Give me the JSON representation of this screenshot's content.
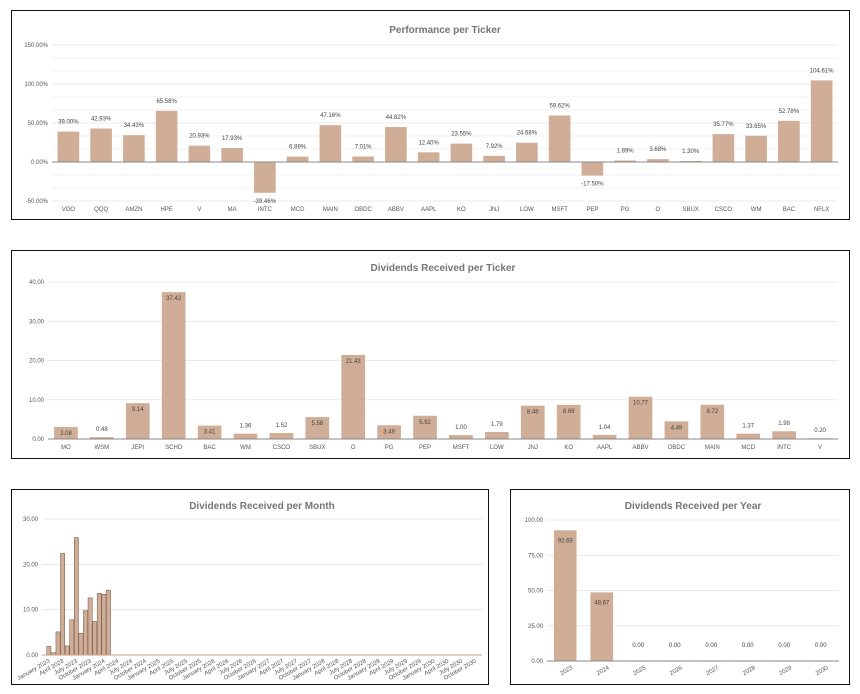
{
  "chart_data": [
    {
      "id": "perf",
      "type": "bar",
      "title": "Performance per Ticker",
      "xlabel": "",
      "ylabel": "",
      "ylim": [
        -50,
        150
      ],
      "yticks": [
        "-50.00%",
        "0.00%",
        "50.00%",
        "100.00%",
        "150.00%"
      ],
      "ytick_values": [
        -50,
        0,
        50,
        100,
        150
      ],
      "grid": true,
      "color": "#d0ad97",
      "categories": [
        "VOO",
        "QQQ",
        "AMZN",
        "HPE",
        "V",
        "MA",
        "INTC",
        "MCD",
        "MAIN",
        "OBDC",
        "ABBV",
        "AAPL",
        "KO",
        "JNJ",
        "LOW",
        "MSFT",
        "PEP",
        "PG",
        "O",
        "SBUX",
        "CSCO",
        "WM",
        "BAC",
        "NFLX"
      ],
      "values": [
        39.0,
        42.93,
        34.43,
        65.58,
        20.93,
        17.93,
        -39.46,
        6.89,
        47.16,
        7.01,
        44.82,
        12.4,
        23.55,
        7.92,
        24.68,
        59.62,
        -17.5,
        1.89,
        3.68,
        1.3,
        35.77,
        33.65,
        52.78,
        104.61
      ],
      "labels": [
        "39.00%",
        "42.93%",
        "34.43%",
        "65.58%",
        "20.93%",
        "17.93%",
        "-39.46%",
        "6.89%",
        "47.16%",
        "7.01%",
        "44.82%",
        "12.40%",
        "23.55%",
        "7.92%",
        "24.68%",
        "59.62%",
        "-17.50%",
        "1.89%",
        "3.68%",
        "1.30%",
        "35.77%",
        "33.65%",
        "52.78%",
        "104.61%"
      ]
    },
    {
      "id": "divticker",
      "type": "bar",
      "title": "Dividends Received per Ticker",
      "xlabel": "",
      "ylabel": "",
      "ylim": [
        0,
        40
      ],
      "yticks": [
        "0.00",
        "10.00",
        "20.00",
        "30.00",
        "40.00"
      ],
      "ytick_values": [
        0,
        10,
        20,
        30,
        40
      ],
      "grid": true,
      "color": "#d0ad97",
      "categories": [
        "MO",
        "WSM",
        "JEPI",
        "SCHD",
        "BAC",
        "WM",
        "CSCO",
        "SBUX",
        "O",
        "PG",
        "PEP",
        "MSFT",
        "LOW",
        "JNJ",
        "KO",
        "AAPL",
        "ABBV",
        "OBDC",
        "MAIN",
        "MCD",
        "INTC",
        "V"
      ],
      "values": [
        3.08,
        0.48,
        9.14,
        37.42,
        3.41,
        1.36,
        1.52,
        5.58,
        21.43,
        3.49,
        5.92,
        1.0,
        1.79,
        8.48,
        8.69,
        1.04,
        10.77,
        4.49,
        8.72,
        1.37,
        1.98,
        0.2
      ],
      "labels": [
        "3.08",
        "0.48",
        "9.14",
        "37.42",
        "3.41",
        "1.36",
        "1.52",
        "5.58",
        "21.43",
        "3.49",
        "5.92",
        "1.00",
        "1.79",
        "8.48",
        "8.69",
        "1.04",
        "10.77",
        "4.49",
        "8.72",
        "1.37",
        "1.98",
        "0.20"
      ]
    },
    {
      "id": "divmonth",
      "type": "bar",
      "title": "Dividends Received per Month",
      "xlabel": "",
      "ylabel": "",
      "ylim": [
        0,
        30
      ],
      "yticks": [
        "0.00",
        "10.00",
        "20.00",
        "30.00"
      ],
      "ytick_values": [
        0,
        10,
        20,
        30
      ],
      "grid": true,
      "color": "#d0ad97",
      "x_tick_labels": [
        "January 2023",
        "April 2023",
        "July 2023",
        "October 2023",
        "January 2024",
        "April 2024",
        "July 2024",
        "October 2024",
        "January 2025",
        "April 2025",
        "July 2025",
        "October 2025",
        "January 2026",
        "April 2026",
        "July 2026",
        "October 2026",
        "January 2027",
        "April 2027",
        "July 2027",
        "October 2027",
        "January 2028",
        "April 2028",
        "July 2028",
        "October 2028",
        "January 2029",
        "April 2029",
        "July 2029",
        "October 2029",
        "January 2030",
        "April 2030",
        "July 2030",
        "October 2030"
      ],
      "months_total": 96,
      "values": [
        0,
        1.9,
        0.5,
        5.1,
        22.4,
        2.0,
        7.8,
        25.9,
        4.8,
        9.8,
        12.6,
        7.4,
        13.6,
        13.4,
        14.3
      ]
    },
    {
      "id": "divyear",
      "type": "bar",
      "title": "Dividends Received per Year",
      "xlabel": "",
      "ylabel": "",
      "ylim": [
        0,
        100
      ],
      "yticks": [
        "0.00",
        "25.00",
        "50.00",
        "75.00",
        "100.00"
      ],
      "ytick_values": [
        0,
        25,
        50,
        75,
        100
      ],
      "grid": true,
      "color": "#d0ad97",
      "categories": [
        "2023",
        "2024",
        "2025",
        "2026",
        "2027",
        "2028",
        "2029",
        "2030"
      ],
      "values": [
        92.69,
        48.67,
        0,
        0,
        0,
        0,
        0,
        0
      ],
      "labels": [
        "92.69",
        "48.67",
        "0.00",
        "0.00",
        "0.00",
        "0.00",
        "0.00",
        "0.00"
      ]
    }
  ]
}
